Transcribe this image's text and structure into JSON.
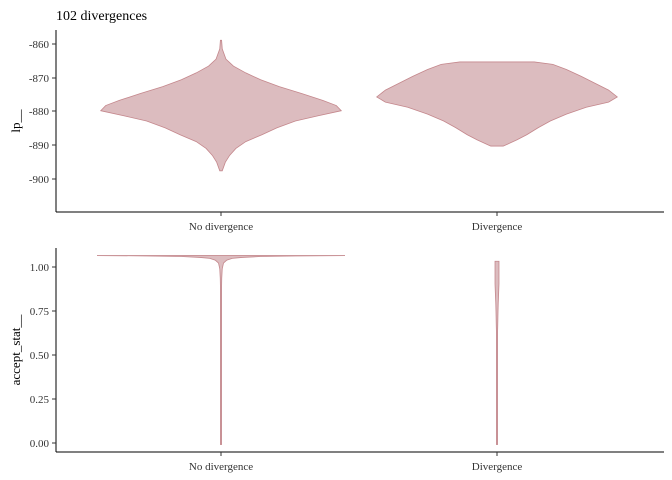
{
  "chart_data": [
    {
      "type": "violin",
      "title": "102 divergences",
      "xlabel": "",
      "ylabel": "lp__",
      "categories": [
        "No divergence",
        "Divergence"
      ],
      "ylim": [
        -909.5,
        -856.5
      ],
      "yticks": [
        -860,
        -870,
        -880,
        -890,
        -900
      ],
      "ytick_labels": [
        "-860",
        "-870",
        "-880",
        "-890",
        "-900"
      ],
      "fill_color": "#dcbcbf",
      "line_color": "#c4878c",
      "densities": [
        {
          "name": "No divergence",
          "profile": [
            [
              -859.5,
              0.004
            ],
            [
              -862,
              0.01
            ],
            [
              -865,
              0.04
            ],
            [
              -867,
              0.1
            ],
            [
              -869,
              0.2
            ],
            [
              -871,
              0.32
            ],
            [
              -873,
              0.47
            ],
            [
              -875,
              0.65
            ],
            [
              -877,
              0.82
            ],
            [
              -878.5,
              0.93
            ],
            [
              -880,
              0.97
            ],
            [
              -881.5,
              0.78
            ],
            [
              -883,
              0.6
            ],
            [
              -885,
              0.45
            ],
            [
              -887,
              0.33
            ],
            [
              -889,
              0.2
            ],
            [
              -891,
              0.12
            ],
            [
              -893,
              0.07
            ],
            [
              -895,
              0.035
            ],
            [
              -897.5,
              0.01
            ]
          ]
        },
        {
          "name": "Divergence",
          "profile": [
            [
              -865.8,
              0.3
            ],
            [
              -866.5,
              0.45
            ],
            [
              -868,
              0.56
            ],
            [
              -870,
              0.68
            ],
            [
              -872,
              0.79
            ],
            [
              -874,
              0.9
            ],
            [
              -876,
              0.97
            ],
            [
              -877.5,
              0.9
            ],
            [
              -879,
              0.72
            ],
            [
              -881,
              0.56
            ],
            [
              -883,
              0.43
            ],
            [
              -885,
              0.33
            ],
            [
              -887,
              0.24
            ],
            [
              -888.5,
              0.16
            ],
            [
              -890,
              0.07
            ],
            [
              -890.3,
              0.05
            ]
          ]
        }
      ]
    },
    {
      "type": "violin",
      "title": "",
      "xlabel": "",
      "ylabel": "accept_stat__",
      "categories": [
        "No divergence",
        "Divergence"
      ],
      "ylim": [
        -0.04,
        1.04
      ],
      "yticks": [
        1.0,
        0.75,
        0.5,
        0.25,
        0.0
      ],
      "ytick_labels": [
        "1.00",
        "0.75",
        "0.50",
        "0.25",
        "0.00"
      ],
      "fill_color": "#dcbcbf",
      "line_color": "#c4878c",
      "densities": [
        {
          "name": "No divergence",
          "profile": [
            [
              1.0,
              1.0
            ],
            [
              0.998,
              0.6
            ],
            [
              0.995,
              0.32
            ],
            [
              0.99,
              0.17
            ],
            [
              0.985,
              0.09
            ],
            [
              0.975,
              0.045
            ],
            [
              0.96,
              0.02
            ],
            [
              0.93,
              0.01
            ],
            [
              0.88,
              0.006
            ],
            [
              0.84,
              0.004
            ],
            [
              0.8,
              0.002
            ],
            [
              0.5,
              0.0015
            ],
            [
              0.0,
              0.0015
            ]
          ]
        },
        {
          "name": "Divergence",
          "profile": [
            [
              0.97,
              0.016
            ],
            [
              0.9,
              0.016
            ],
            [
              0.85,
              0.016
            ],
            [
              0.78,
              0.012
            ],
            [
              0.75,
              0.01
            ],
            [
              0.7,
              0.008
            ],
            [
              0.63,
              0.006
            ],
            [
              0.6,
              0.003
            ],
            [
              0.3,
              0.002
            ],
            [
              0.0,
              0.002
            ]
          ]
        }
      ]
    }
  ]
}
